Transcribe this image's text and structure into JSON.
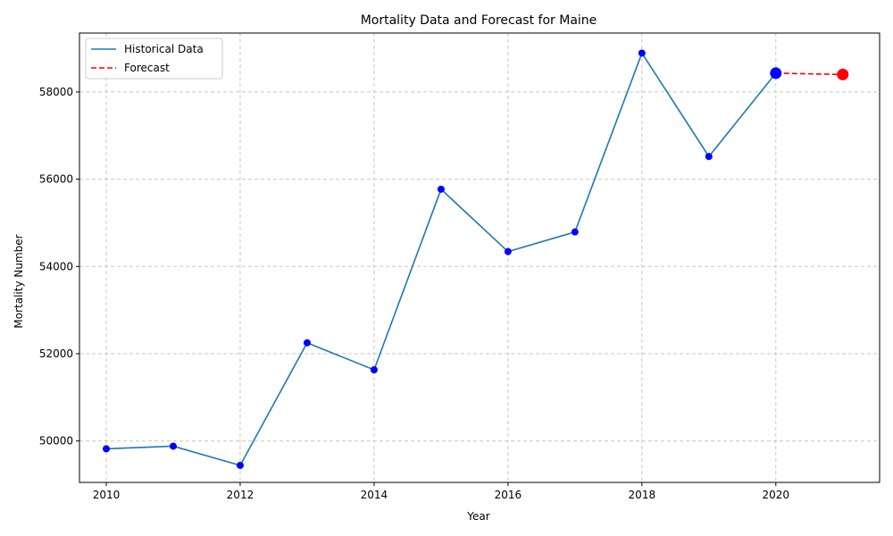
{
  "chart_data": {
    "type": "line",
    "title": "Mortality Data and Forecast for Maine",
    "xlabel": "Year",
    "ylabel": "Mortality Number",
    "xlim": [
      2009.6,
      2021.55
    ],
    "ylim": [
      49050,
      59350
    ],
    "x_ticks": [
      2010,
      2012,
      2014,
      2016,
      2018,
      2020
    ],
    "y_ticks": [
      50000,
      52000,
      54000,
      56000,
      58000
    ],
    "grid": true,
    "legend_position": "top-left",
    "series": [
      {
        "name": "Historical Data",
        "color": "#1f77b4",
        "marker_color": "#0000ff",
        "style": "solid",
        "x": [
          2010,
          2011,
          2012,
          2013,
          2014,
          2015,
          2016,
          2017,
          2018,
          2019,
          2020
        ],
        "y": [
          49820,
          49880,
          49440,
          52250,
          51630,
          55770,
          54340,
          54790,
          58890,
          56520,
          58430
        ]
      },
      {
        "name": "Forecast",
        "color": "#ff0000",
        "marker_color": "#ff0000",
        "style": "dashed",
        "x": [
          2020,
          2021
        ],
        "y": [
          58430,
          58400
        ]
      }
    ]
  }
}
